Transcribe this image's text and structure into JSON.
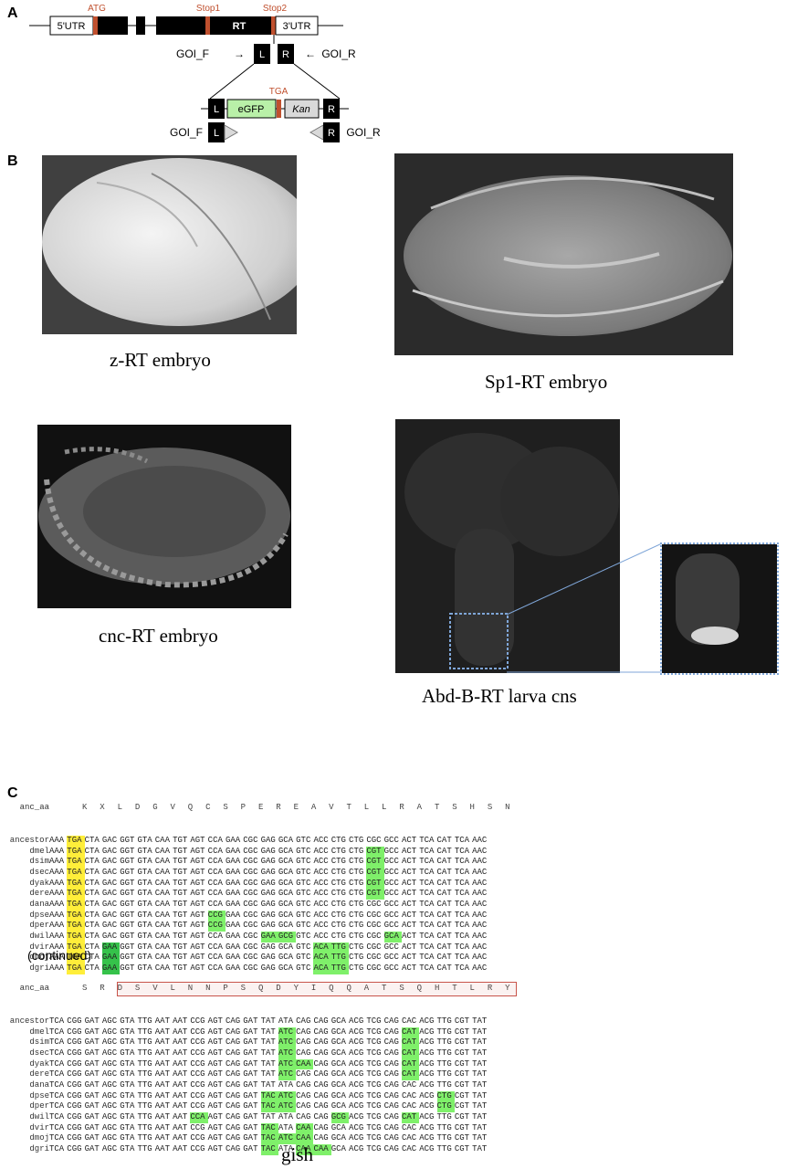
{
  "panels": {
    "a": "A",
    "b": "B",
    "c": "C"
  },
  "panel_a": {
    "utr5": "5'UTR",
    "utr3": "3'UTR",
    "atg": "ATG",
    "stop1": "Stop1",
    "stop2": "Stop2",
    "rt": "RT",
    "goi_f": "GOI_F",
    "goi_r": "GOI_R",
    "left_arm": "L",
    "right_arm": "R",
    "tga": "TGA",
    "egfp": "eGFP",
    "kan": "Kan",
    "colors": {
      "marker": "#c0502e",
      "egfp": "#b9f0a8",
      "kan": "#d9d9d9"
    }
  },
  "panel_b": {
    "captions": [
      "z-RT embryo",
      "Sp1-RT embryo",
      "cnc-RT embryo",
      "Abd-B-RT larva cns"
    ]
  },
  "panel_c": {
    "block1": {
      "aa_label": "anc_aa",
      "aa": [
        "K",
        "X",
        "L",
        "D",
        "G",
        "V",
        "Q",
        "C",
        "S",
        "P",
        "E",
        "R",
        "E",
        "A",
        "V",
        "T",
        "L",
        "L",
        "R",
        "A",
        "T",
        "S",
        "H",
        "S",
        "N"
      ],
      "rows": [
        {
          "name": "ancestor",
          "codons": [
            "AAA",
            "TGA",
            "CTA",
            "GAC",
            "GGT",
            "GTA",
            "CAA",
            "TGT",
            "AGT",
            "CCA",
            "GAA",
            "CGC",
            "GAG",
            "GCA",
            "GTC",
            "ACC",
            "CTG",
            "CTG",
            "CGC",
            "GCC",
            "ACT",
            "TCA",
            "CAT",
            "TCA",
            "AAC"
          ],
          "hl": {
            "1": "ylw"
          }
        },
        {
          "name": "dmel",
          "codons": [
            "AAA",
            "TGA",
            "CTA",
            "GAC",
            "GGT",
            "GTA",
            "CAA",
            "TGT",
            "AGT",
            "CCA",
            "GAA",
            "CGC",
            "GAG",
            "GCA",
            "GTC",
            "ACC",
            "CTG",
            "CTG",
            "CGT",
            "GCC",
            "ACT",
            "TCA",
            "CAT",
            "TCA",
            "AAC"
          ],
          "hl": {
            "1": "ylw",
            "18": "grn"
          }
        },
        {
          "name": "dsim",
          "codons": [
            "AAA",
            "TGA",
            "CTA",
            "GAC",
            "GGT",
            "GTA",
            "CAA",
            "TGT",
            "AGT",
            "CCA",
            "GAA",
            "CGC",
            "GAG",
            "GCA",
            "GTC",
            "ACC",
            "CTG",
            "CTG",
            "CGT",
            "GCC",
            "ACT",
            "TCA",
            "CAT",
            "TCA",
            "AAC"
          ],
          "hl": {
            "1": "ylw",
            "18": "grn"
          }
        },
        {
          "name": "dsec",
          "codons": [
            "AAA",
            "TGA",
            "CTA",
            "GAC",
            "GGT",
            "GTA",
            "CAA",
            "TGT",
            "AGT",
            "CCA",
            "GAA",
            "CGC",
            "GAG",
            "GCA",
            "GTC",
            "ACC",
            "CTG",
            "CTG",
            "CGT",
            "GCC",
            "ACT",
            "TCA",
            "CAT",
            "TCA",
            "AAC"
          ],
          "hl": {
            "1": "ylw",
            "18": "grn"
          }
        },
        {
          "name": "dyak",
          "codons": [
            "AAA",
            "TGA",
            "CTA",
            "GAC",
            "GGT",
            "GTA",
            "CAA",
            "TGT",
            "AGT",
            "CCA",
            "GAA",
            "CGC",
            "GAG",
            "GCA",
            "GTC",
            "ACC",
            "CTG",
            "CTG",
            "CGT",
            "GCC",
            "ACT",
            "TCA",
            "CAT",
            "TCA",
            "AAC"
          ],
          "hl": {
            "1": "ylw",
            "18": "grn"
          }
        },
        {
          "name": "dere",
          "codons": [
            "AAA",
            "TGA",
            "CTA",
            "GAC",
            "GGT",
            "GTA",
            "CAA",
            "TGT",
            "AGT",
            "CCA",
            "GAA",
            "CGC",
            "GAG",
            "GCA",
            "GTC",
            "ACC",
            "CTG",
            "CTG",
            "CGT",
            "GCC",
            "ACT",
            "TCA",
            "CAT",
            "TCA",
            "AAC"
          ],
          "hl": {
            "1": "ylw",
            "18": "grn"
          }
        },
        {
          "name": "dana",
          "codons": [
            "AAA",
            "TGA",
            "CTA",
            "GAC",
            "GGT",
            "GTA",
            "CAA",
            "TGT",
            "AGT",
            "CCA",
            "GAA",
            "CGC",
            "GAG",
            "GCA",
            "GTC",
            "ACC",
            "CTG",
            "CTG",
            "CGC",
            "GCC",
            "ACT",
            "TCA",
            "CAT",
            "TCA",
            "AAC"
          ],
          "hl": {
            "1": "ylw"
          }
        },
        {
          "name": "dpse",
          "codons": [
            "AAA",
            "TGA",
            "CTA",
            "GAC",
            "GGT",
            "GTA",
            "CAA",
            "TGT",
            "AGT",
            "CCG",
            "GAA",
            "CGC",
            "GAG",
            "GCA",
            "GTC",
            "ACC",
            "CTG",
            "CTG",
            "CGC",
            "GCC",
            "ACT",
            "TCA",
            "CAT",
            "TCA",
            "AAC"
          ],
          "hl": {
            "1": "ylw",
            "9": "grn"
          }
        },
        {
          "name": "dper",
          "codons": [
            "AAA",
            "TGA",
            "CTA",
            "GAC",
            "GGT",
            "GTA",
            "CAA",
            "TGT",
            "AGT",
            "CCG",
            "GAA",
            "CGC",
            "GAG",
            "GCA",
            "GTC",
            "ACC",
            "CTG",
            "CTG",
            "CGC",
            "GCC",
            "ACT",
            "TCA",
            "CAT",
            "TCA",
            "AAC"
          ],
          "hl": {
            "1": "ylw",
            "9": "grn"
          }
        },
        {
          "name": "dwil",
          "codons": [
            "AAA",
            "TGA",
            "CTA",
            "GAC",
            "GGT",
            "GTA",
            "CAA",
            "TGT",
            "AGT",
            "CCA",
            "GAA",
            "CGC",
            "GAA",
            "GCG",
            "GTC",
            "ACC",
            "CTG",
            "CTG",
            "CGC",
            "GCA",
            "ACT",
            "TCA",
            "CAT",
            "TCA",
            "AAC"
          ],
          "hl": {
            "1": "ylw",
            "12": "grn",
            "13": "grn",
            "19": "grn"
          }
        },
        {
          "name": "dvir",
          "codons": [
            "AAA",
            "TGA",
            "CTA",
            "GAA",
            "GGT",
            "GTA",
            "CAA",
            "TGT",
            "AGT",
            "CCA",
            "GAA",
            "CGC",
            "GAG",
            "GCA",
            "GTC",
            "ACA",
            "TTG",
            "CTG",
            "CGC",
            "GCC",
            "ACT",
            "TCA",
            "CAT",
            "TCA",
            "AAC"
          ],
          "hl": {
            "1": "ylw",
            "3": "dgn",
            "15": "grn",
            "16": "grn"
          }
        },
        {
          "name": "dmoj",
          "codons": [
            "AAA",
            "TGA",
            "CTA",
            "GAA",
            "GGT",
            "GTA",
            "CAA",
            "TGT",
            "AGT",
            "CCA",
            "GAA",
            "CGC",
            "GAG",
            "GCA",
            "GTC",
            "ACA",
            "TTG",
            "CTG",
            "CGC",
            "GCC",
            "ACT",
            "TCA",
            "CAT",
            "TCA",
            "AAC"
          ],
          "hl": {
            "1": "ylw",
            "3": "dgn",
            "15": "grn",
            "16": "grn"
          }
        },
        {
          "name": "dgri",
          "codons": [
            "AAA",
            "TGA",
            "CTA",
            "GAA",
            "GGT",
            "GTA",
            "CAA",
            "TGT",
            "AGT",
            "CCA",
            "GAA",
            "CGC",
            "GAG",
            "GCA",
            "GTC",
            "ACA",
            "TTG",
            "CTG",
            "CGC",
            "GCC",
            "ACT",
            "TCA",
            "CAT",
            "TCA",
            "AAC"
          ],
          "hl": {
            "1": "ylw",
            "3": "dgn",
            "15": "grn",
            "16": "grn"
          }
        }
      ]
    },
    "continued": "(continued)",
    "block2": {
      "aa_label": "anc_aa",
      "aa": [
        "S",
        "R",
        "D",
        "S",
        "V",
        "L",
        "N",
        "N",
        "P",
        "S",
        "Q",
        "D",
        "Y",
        "I",
        "Q",
        "Q",
        "A",
        "T",
        "S",
        "Q",
        "H",
        "T",
        "L",
        "R",
        "Y"
      ],
      "rows": [
        {
          "name": "ancestor",
          "codons": [
            "TCA",
            "CGG",
            "GAT",
            "AGC",
            "GTA",
            "TTG",
            "AAT",
            "AAT",
            "CCG",
            "AGT",
            "CAG",
            "GAT",
            "TAT",
            "ATA",
            "CAG",
            "CAG",
            "GCA",
            "ACG",
            "TCG",
            "CAG",
            "CAC",
            "ACG",
            "TTG",
            "CGT",
            "TAT"
          ],
          "hl": {}
        },
        {
          "name": "dmel",
          "codons": [
            "TCA",
            "CGG",
            "GAT",
            "AGC",
            "GTA",
            "TTG",
            "AAT",
            "AAT",
            "CCG",
            "AGT",
            "CAG",
            "GAT",
            "TAT",
            "ATC",
            "CAG",
            "CAG",
            "GCA",
            "ACG",
            "TCG",
            "CAG",
            "CAT",
            "ACG",
            "TTG",
            "CGT",
            "TAT"
          ],
          "hl": {
            "13": "grn",
            "20": "grn"
          }
        },
        {
          "name": "dsim",
          "codons": [
            "TCA",
            "CGG",
            "GAT",
            "AGC",
            "GTA",
            "TTG",
            "AAT",
            "AAT",
            "CCG",
            "AGT",
            "CAG",
            "GAT",
            "TAT",
            "ATC",
            "CAG",
            "CAG",
            "GCA",
            "ACG",
            "TCG",
            "CAG",
            "CAT",
            "ACG",
            "TTG",
            "CGT",
            "TAT"
          ],
          "hl": {
            "13": "grn",
            "20": "grn"
          }
        },
        {
          "name": "dsec",
          "codons": [
            "TCA",
            "CGG",
            "GAT",
            "AGC",
            "GTA",
            "TTG",
            "AAT",
            "AAT",
            "CCG",
            "AGT",
            "CAG",
            "GAT",
            "TAT",
            "ATC",
            "CAG",
            "CAG",
            "GCA",
            "ACG",
            "TCG",
            "CAG",
            "CAT",
            "ACG",
            "TTG",
            "CGT",
            "TAT"
          ],
          "hl": {
            "13": "grn",
            "20": "grn"
          }
        },
        {
          "name": "dyak",
          "codons": [
            "TCA",
            "CGG",
            "GAT",
            "AGC",
            "GTA",
            "TTG",
            "AAT",
            "AAT",
            "CCG",
            "AGT",
            "CAG",
            "GAT",
            "TAT",
            "ATC",
            "CAA",
            "CAG",
            "GCA",
            "ACG",
            "TCG",
            "CAG",
            "CAT",
            "ACG",
            "TTG",
            "CGT",
            "TAT"
          ],
          "hl": {
            "13": "grn",
            "14": "grn",
            "20": "grn"
          }
        },
        {
          "name": "dere",
          "codons": [
            "TCA",
            "CGG",
            "GAT",
            "AGC",
            "GTA",
            "TTG",
            "AAT",
            "AAT",
            "CCG",
            "AGT",
            "CAG",
            "GAT",
            "TAT",
            "ATC",
            "CAG",
            "CAG",
            "GCA",
            "ACG",
            "TCG",
            "CAG",
            "CAT",
            "ACG",
            "TTG",
            "CGT",
            "TAT"
          ],
          "hl": {
            "13": "grn",
            "20": "grn"
          }
        },
        {
          "name": "dana",
          "codons": [
            "TCA",
            "CGG",
            "GAT",
            "AGC",
            "GTA",
            "TTG",
            "AAT",
            "AAT",
            "CCG",
            "AGT",
            "CAG",
            "GAT",
            "TAT",
            "ATA",
            "CAG",
            "CAG",
            "GCA",
            "ACG",
            "TCG",
            "CAG",
            "CAC",
            "ACG",
            "TTG",
            "CGT",
            "TAT"
          ],
          "hl": {}
        },
        {
          "name": "dpse",
          "codons": [
            "TCA",
            "CGG",
            "GAT",
            "AGC",
            "GTA",
            "TTG",
            "AAT",
            "AAT",
            "CCG",
            "AGT",
            "CAG",
            "GAT",
            "TAC",
            "ATC",
            "CAG",
            "CAG",
            "GCA",
            "ACG",
            "TCG",
            "CAG",
            "CAC",
            "ACG",
            "CTG",
            "CGT",
            "TAT"
          ],
          "hl": {
            "12": "grn",
            "13": "grn",
            "22": "grn"
          }
        },
        {
          "name": "dper",
          "codons": [
            "TCA",
            "CGG",
            "GAT",
            "AGC",
            "GTA",
            "TTG",
            "AAT",
            "AAT",
            "CCG",
            "AGT",
            "CAG",
            "GAT",
            "TAC",
            "ATC",
            "CAG",
            "CAG",
            "GCA",
            "ACG",
            "TCG",
            "CAG",
            "CAC",
            "ACG",
            "CTG",
            "CGT",
            "TAT"
          ],
          "hl": {
            "12": "grn",
            "13": "grn",
            "22": "grn"
          }
        },
        {
          "name": "dwil",
          "codons": [
            "TCA",
            "CGG",
            "GAT",
            "AGC",
            "GTA",
            "TTG",
            "AAT",
            "AAT",
            "CCA",
            "AGT",
            "CAG",
            "GAT",
            "TAT",
            "ATA",
            "CAG",
            "CAG",
            "GCG",
            "ACG",
            "TCG",
            "CAG",
            "CAT",
            "ACG",
            "TTG",
            "CGT",
            "TAT"
          ],
          "hl": {
            "8": "grn",
            "16": "grn",
            "20": "grn"
          }
        },
        {
          "name": "dvir",
          "codons": [
            "TCA",
            "CGG",
            "GAT",
            "AGC",
            "GTA",
            "TTG",
            "AAT",
            "AAT",
            "CCG",
            "AGT",
            "CAG",
            "GAT",
            "TAC",
            "ATA",
            "CAA",
            "CAG",
            "GCA",
            "ACG",
            "TCG",
            "CAG",
            "CAC",
            "ACG",
            "TTG",
            "CGT",
            "TAT"
          ],
          "hl": {
            "12": "grn",
            "14": "grn"
          }
        },
        {
          "name": "dmoj",
          "codons": [
            "TCA",
            "CGG",
            "GAT",
            "AGC",
            "GTA",
            "TTG",
            "AAT",
            "AAT",
            "CCG",
            "AGT",
            "CAG",
            "GAT",
            "TAC",
            "ATC",
            "CAA",
            "CAG",
            "GCA",
            "ACG",
            "TCG",
            "CAG",
            "CAC",
            "ACG",
            "TTG",
            "CGT",
            "TAT"
          ],
          "hl": {
            "12": "grn",
            "13": "grn",
            "14": "grn"
          }
        },
        {
          "name": "dgri",
          "codons": [
            "TCA",
            "CGG",
            "GAT",
            "AGC",
            "GTA",
            "TTG",
            "AAT",
            "AAT",
            "CCG",
            "AGT",
            "CAG",
            "GAT",
            "TAC",
            "ATA",
            "CAA",
            "CAA",
            "GCA",
            "ACG",
            "TCG",
            "CAG",
            "CAC",
            "ACG",
            "TTG",
            "CGT",
            "TAT"
          ],
          "hl": {
            "12": "grn",
            "14": "grn",
            "15": "grn"
          }
        }
      ]
    },
    "gene_label": "gish"
  }
}
